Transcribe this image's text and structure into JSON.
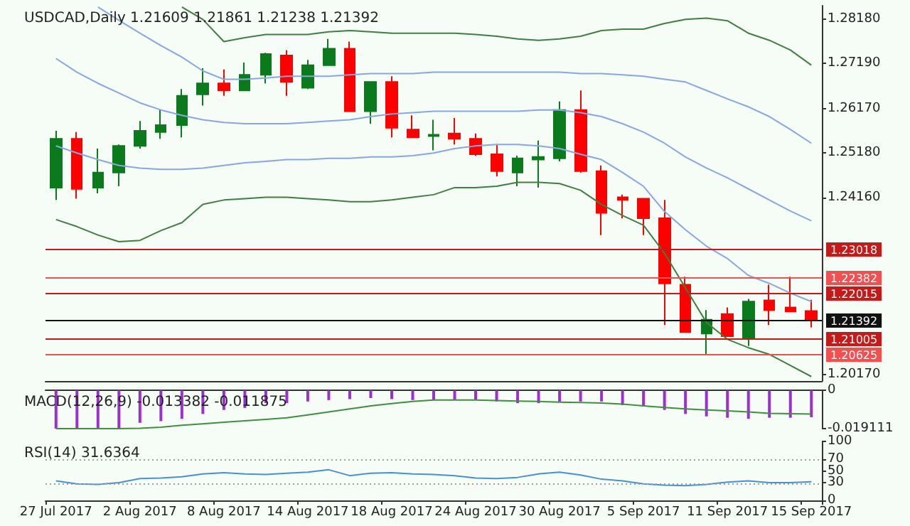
{
  "chart_data": [
    {
      "type": "candlestick",
      "title": "USDCAD,Daily 1.21609 1.21861 1.21238 1.21392",
      "tick_labels": "y",
      "marker": "none",
      "ohlc": [
        [
          1.2439,
          1.2567,
          1.2411,
          1.2549
        ],
        [
          1.2549,
          1.2564,
          1.2414,
          1.2436
        ],
        [
          1.2439,
          1.2527,
          1.2426,
          1.2473
        ],
        [
          1.2473,
          1.2536,
          1.2442,
          1.2533
        ],
        [
          1.2533,
          1.2589,
          1.2527,
          1.2567
        ],
        [
          1.2564,
          1.2614,
          1.2549,
          1.258
        ],
        [
          1.258,
          1.2661,
          1.2552,
          1.2646
        ],
        [
          1.2649,
          1.2708,
          1.2624,
          1.2674
        ],
        [
          1.2674,
          1.2705,
          1.2646,
          1.2658
        ],
        [
          1.2658,
          1.2721,
          1.2658,
          1.2693
        ],
        [
          1.2693,
          1.2743,
          1.2674,
          1.274
        ],
        [
          1.2737,
          1.2749,
          1.2646,
          1.2677
        ],
        [
          1.2664,
          1.2727,
          1.2661,
          1.2715
        ],
        [
          1.2715,
          1.2774,
          1.2715,
          1.2752
        ],
        [
          1.2752,
          1.2768,
          1.2611,
          1.2611
        ],
        [
          1.2611,
          1.2677,
          1.2583,
          1.2677
        ],
        [
          1.2677,
          1.269,
          1.2552,
          1.2574
        ],
        [
          1.257,
          1.2602,
          1.2552,
          1.2552
        ],
        [
          1.2555,
          1.2592,
          1.2523,
          1.2558
        ],
        [
          1.2561,
          1.2596,
          1.2536,
          1.2549
        ],
        [
          1.2549,
          1.2561,
          1.2511,
          1.2514
        ],
        [
          1.2514,
          1.2536,
          1.2464,
          1.2476
        ],
        [
          1.2473,
          1.2511,
          1.2442,
          1.2505
        ],
        [
          1.2502,
          1.2545,
          1.2439,
          1.2508
        ],
        [
          1.2505,
          1.2633,
          1.2498,
          1.2614
        ],
        [
          1.2614,
          1.2658,
          1.2473,
          1.2476
        ],
        [
          1.2476,
          1.2489,
          1.2332,
          1.2382
        ],
        [
          1.2417,
          1.2423,
          1.237,
          1.2411
        ],
        [
          1.2414,
          1.2414,
          1.2332,
          1.237
        ],
        [
          1.237,
          1.2411,
          1.2129,
          1.2223
        ],
        [
          1.222,
          1.2238,
          1.2113,
          1.2113
        ],
        [
          1.211,
          1.2163,
          1.2063,
          1.2141
        ],
        [
          1.2154,
          1.2169,
          1.2104,
          1.2104
        ],
        [
          1.21,
          1.2188,
          1.2082,
          1.2182
        ],
        [
          1.2185,
          1.222,
          1.2129,
          1.2163
        ],
        [
          1.2169,
          1.2238,
          1.216,
          1.216
        ],
        [
          1.21609,
          1.21861,
          1.21238,
          1.21392
        ]
      ],
      "colors": [
        "#0b7a1c",
        "#ff0000",
        "#0b7a1c",
        "#0b7a1c",
        "#0b7a1c",
        "#0b7a1c",
        "#0b7a1c",
        "#0b7a1c",
        "#ff0000",
        "#0b7a1c",
        "#0b7a1c",
        "#ff0000",
        "#0b7a1c",
        "#0b7a1c",
        "#ff0000",
        "#0b7a1c",
        "#ff0000",
        "#ff0000",
        "#0b7a1c",
        "#ff0000",
        "#ff0000",
        "#ff0000",
        "#0b7a1c",
        "#0b7a1c",
        "#0b7a1c",
        "#ff0000",
        "#ff0000",
        "#ff0000",
        "#ff0000",
        "#ff0000",
        "#ff0000",
        "#0b7a1c",
        "#ff0000",
        "#0b7a1c",
        "#ff0000",
        "#ff0000",
        "#ff0000"
      ],
      "series": [
        {
          "type": "line",
          "color": "#3f7f3f",
          "values": [
            null,
            null,
            null,
            null,
            null,
            null,
            1.2846,
            1.2818,
            1.2768,
            1.2777,
            1.2784,
            1.2784,
            1.2784,
            1.279,
            1.2793,
            1.279,
            1.2787,
            1.2787,
            1.2787,
            1.2787,
            1.2784,
            1.278,
            1.2774,
            1.2771,
            1.2774,
            1.278,
            1.2793,
            1.2796,
            1.2796,
            1.2809,
            1.2818,
            1.2821,
            1.2815,
            1.2787,
            1.2771,
            1.2749,
            1.2715
          ]
        },
        {
          "type": "line",
          "color": "#86a8e0",
          "values": [
            null,
            null,
            1.2846,
            1.2816,
            1.2787,
            1.2759,
            1.2733,
            1.2702,
            1.2683,
            1.2683,
            1.2686,
            1.269,
            1.269,
            1.269,
            1.2693,
            1.2696,
            1.2696,
            1.2696,
            1.2699,
            1.2699,
            1.2699,
            1.2699,
            1.2699,
            1.2699,
            1.2699,
            1.2696,
            1.2696,
            1.2693,
            1.269,
            1.2683,
            1.2677,
            1.2658,
            1.2639,
            1.2621,
            1.2599,
            1.257,
            1.2539
          ]
        },
        {
          "type": "line",
          "color": "#86a8e0",
          "values": [
            1.273,
            1.2699,
            1.2674,
            1.2652,
            1.263,
            1.2614,
            1.2602,
            1.2592,
            1.2586,
            1.2583,
            1.2583,
            1.2583,
            1.2586,
            1.2589,
            1.2592,
            1.2599,
            1.2605,
            1.2608,
            1.2611,
            1.2611,
            1.2611,
            1.2611,
            1.2611,
            1.2614,
            1.2614,
            1.2608,
            1.2599,
            1.2583,
            1.2564,
            1.2539,
            1.2508,
            1.2483,
            1.2461,
            1.2436,
            1.2411,
            1.2386,
            1.2364
          ]
        },
        {
          "type": "line",
          "color": "#86a8e0",
          "values": [
            1.2533,
            1.2517,
            1.2502,
            1.2489,
            1.2483,
            1.248,
            1.248,
            1.2483,
            1.2489,
            1.2495,
            1.2498,
            1.2502,
            1.2502,
            1.2505,
            1.2505,
            1.2508,
            1.2508,
            1.2511,
            1.2517,
            1.2527,
            1.2533,
            1.2536,
            1.2536,
            1.2533,
            1.2527,
            1.2514,
            1.2502,
            1.2473,
            1.2442,
            1.2385,
            1.2344,
            1.2307,
            1.2279,
            1.2241,
            1.2223,
            1.2201,
            1.2182
          ]
        },
        {
          "type": "line",
          "color": "#3f7f3f",
          "values": [
            1.2367,
            1.2351,
            1.2332,
            1.2317,
            1.232,
            1.2342,
            1.236,
            1.2401,
            1.2411,
            1.2414,
            1.2417,
            1.2417,
            1.2414,
            1.2411,
            1.2407,
            1.2407,
            1.2411,
            1.2417,
            1.2423,
            1.2439,
            1.2439,
            1.2442,
            1.2451,
            1.2451,
            1.2448,
            1.2433,
            1.2401,
            1.2376,
            1.2354,
            1.2291,
            1.2213,
            1.2135,
            1.2097,
            1.2078,
            1.2063,
            1.2038,
            1.2013
          ]
        }
      ],
      "ylim": [
        1.2003,
        1.2849
      ],
      "yticks": [
        {
          "value": 1.2818,
          "label": "1.28180"
        },
        {
          "value": 1.2719,
          "label": "1.27190"
        },
        {
          "value": 1.2617,
          "label": "1.26170"
        },
        {
          "value": 1.2518,
          "label": "1.25180"
        },
        {
          "value": 1.2416,
          "label": "1.24160"
        },
        {
          "value": 1.2017,
          "label": "1.20170"
        }
      ],
      "ref_lines": [
        {
          "axis": "y",
          "value": 1.23018,
          "label": "1.23018",
          "color": "#c41a1a"
        },
        {
          "axis": "y",
          "value": 1.22382,
          "label": "1.22382",
          "color": "#f05050"
        },
        {
          "axis": "y",
          "value": 1.22015,
          "label": "1.22015",
          "color": "#c41a1a"
        },
        {
          "axis": "y",
          "value": 1.21392,
          "label": "1.21392",
          "color": "#111111"
        },
        {
          "axis": "y",
          "value": 1.21005,
          "label": "1.21005",
          "color": "#c41a1a"
        },
        {
          "axis": "y",
          "value": 1.20625,
          "label": "1.20625",
          "color": "#f05050"
        }
      ]
    },
    {
      "type": "bar",
      "title": "MACD(12,26,9) -0.013382 -0.011875",
      "tick_labels": "y",
      "marker": "none",
      "series": [
        {
          "type": "bar",
          "color": "#9b30d0",
          "values": [
            -0.0191,
            -0.0191,
            -0.0191,
            -0.0191,
            -0.0162,
            -0.0154,
            -0.0142,
            -0.0118,
            -0.0098,
            -0.0088,
            -0.0064,
            -0.0064,
            -0.0056,
            -0.0049,
            -0.0044,
            -0.0039,
            -0.0044,
            -0.0049,
            -0.0049,
            -0.0049,
            -0.0049,
            -0.0056,
            -0.0064,
            -0.0064,
            -0.0056,
            -0.0056,
            -0.0056,
            -0.0074,
            -0.0081,
            -0.0098,
            -0.0118,
            -0.013,
            -0.0137,
            -0.0142,
            -0.0137,
            -0.0137,
            -0.0134
          ]
        },
        {
          "type": "line",
          "color": "#3f8f3f",
          "values": [
            -0.0191,
            -0.0191,
            -0.0191,
            -0.0191,
            -0.0189,
            -0.0184,
            -0.0174,
            -0.0167,
            -0.0159,
            -0.0152,
            -0.0145,
            -0.0137,
            -0.0123,
            -0.0108,
            -0.0093,
            -0.0078,
            -0.0066,
            -0.0056,
            -0.0049,
            -0.0049,
            -0.0049,
            -0.0051,
            -0.0054,
            -0.0056,
            -0.0059,
            -0.0061,
            -0.0064,
            -0.0069,
            -0.0078,
            -0.0086,
            -0.0093,
            -0.0098,
            -0.0103,
            -0.0108,
            -0.0115,
            -0.0117,
            -0.0119
          ]
        }
      ],
      "ylim": [
        -0.019111,
        0
      ],
      "yticks": [
        0,
        -0.019111
      ]
    },
    {
      "type": "line",
      "title": "RSI(14) 31.6364",
      "marker": "none",
      "categories": [
        "27 Jul 2017",
        null,
        null,
        null,
        "2 Aug 2017",
        null,
        null,
        null,
        "8 Aug 2017",
        null,
        null,
        null,
        "14 Aug 2017",
        null,
        null,
        null,
        "18 Aug 2017",
        null,
        null,
        null,
        "24 Aug 2017",
        null,
        null,
        null,
        "30 Aug 2017",
        null,
        null,
        null,
        "5 Sep 2017",
        null,
        null,
        null,
        "11 Sep 2017",
        null,
        null,
        null,
        "15 Sep 2017"
      ],
      "series": [
        {
          "color": "#4a8fd0",
          "values": [
            33,
            28,
            27,
            30,
            37,
            38,
            40,
            45,
            47,
            45,
            44,
            46,
            48,
            52,
            42,
            46,
            47,
            45,
            44,
            42,
            38,
            37,
            39,
            45,
            48,
            43,
            36,
            33,
            28,
            26,
            25,
            27,
            31,
            33,
            30,
            30,
            31.6
          ]
        }
      ],
      "ylim": [
        0,
        100
      ],
      "yticks": [
        100,
        70,
        50,
        30,
        0
      ],
      "ref_lines": [
        {
          "axis": "y",
          "value": 70,
          "color": "#a0a0a0",
          "line_style": "dotted"
        },
        {
          "axis": "y",
          "value": 30,
          "color": "#a0a0a0",
          "line_style": "dotted"
        }
      ]
    }
  ]
}
